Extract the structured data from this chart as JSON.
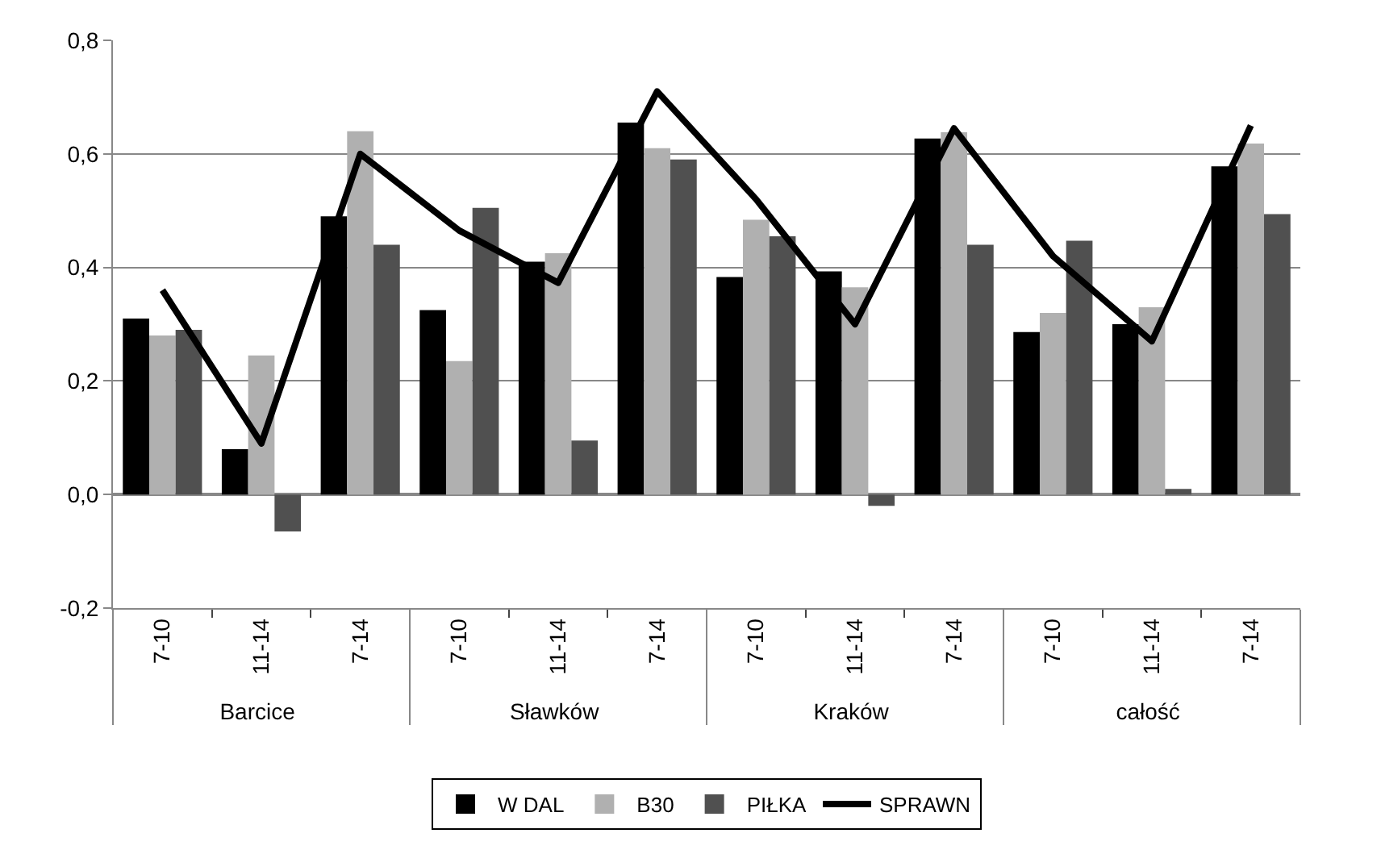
{
  "chart_data": {
    "type": "bar",
    "categories": [
      "7-10",
      "11-14",
      "7-14",
      "7-10",
      "11-14",
      "7-14",
      "7-10",
      "11-14",
      "7-14",
      "7-10",
      "11-14",
      "7-14"
    ],
    "annotations": [
      "Barcice",
      "Sławków",
      "Kraków",
      "całość"
    ],
    "series": [
      {
        "name": "W DAL",
        "color": "#000000",
        "values": [
          0.31,
          0.08,
          0.49,
          0.325,
          0.41,
          0.655,
          0.383,
          0.393,
          0.627,
          0.286,
          0.3,
          0.578
        ]
      },
      {
        "name": "B30",
        "color": "#b0b0b0",
        "values": [
          0.28,
          0.245,
          0.64,
          0.235,
          0.425,
          0.61,
          0.484,
          0.365,
          0.638,
          0.32,
          0.33,
          0.618
        ]
      },
      {
        "name": "PIŁKA",
        "color": "#505050",
        "values": [
          0.29,
          -0.065,
          0.44,
          0.505,
          0.095,
          0.59,
          0.455,
          -0.02,
          0.44,
          0.447,
          0.01,
          0.494
        ]
      },
      {
        "name": "SPRAWN",
        "color": "#000000",
        "type": "line",
        "values": [
          0.36,
          0.09,
          0.6,
          0.465,
          0.373,
          0.71,
          0.52,
          0.3,
          0.645,
          0.42,
          0.27,
          0.65
        ]
      }
    ],
    "ylim": [
      -0.2,
      0.8
    ],
    "yticks": [
      {
        "value": -0.2,
        "label": "-0,2"
      },
      {
        "value": 0,
        "label": "0,0"
      },
      {
        "value": 0.2,
        "label": "0,2"
      },
      {
        "value": 0.4,
        "label": "0,4"
      },
      {
        "value": 0.6,
        "label": "0,6"
      },
      {
        "value": 0.8,
        "label": "0,8"
      }
    ],
    "grid": "y",
    "legend": "bottom",
    "marker": "none"
  }
}
